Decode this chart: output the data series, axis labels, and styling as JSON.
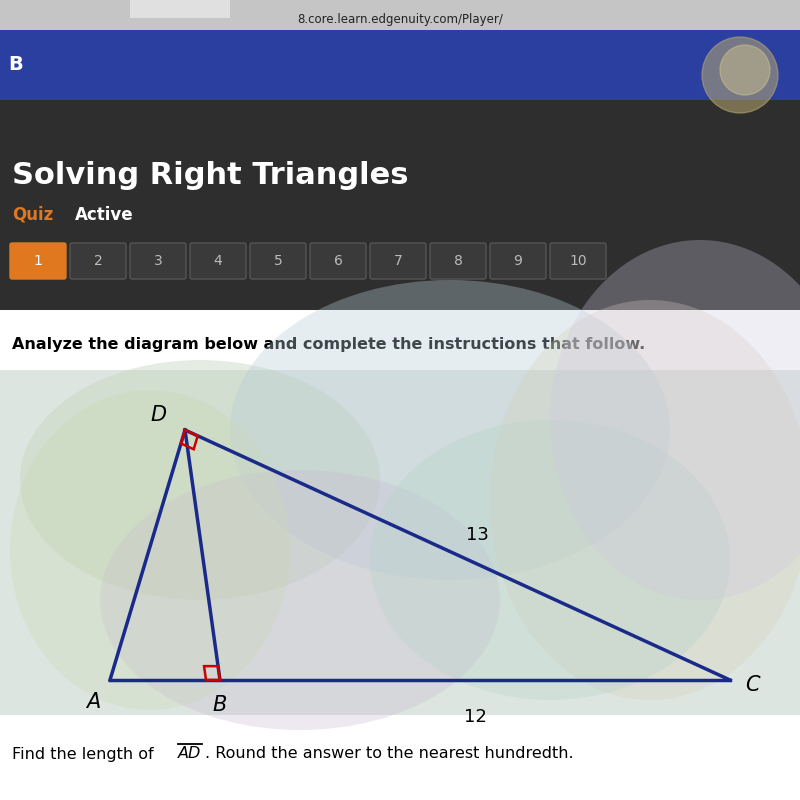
{
  "url_text": "8.core.learn.edgenuity.com/Player/",
  "sidebar_letter": "B",
  "title": "Solving Right Triangles",
  "quiz_label": "Quiz",
  "active_label": "Active",
  "quiz_numbers": [
    1,
    2,
    3,
    4,
    5,
    6,
    7,
    8,
    9,
    10
  ],
  "active_number": 1,
  "active_color": "#e07820",
  "inactive_btn_color": "#3a3a3a",
  "inactive_text_color": "#bbbbbb",
  "inactive_border": "#555555",
  "header_dark_bg": "#2e2e2e",
  "header_blue_bg": "#2a3fa0",
  "url_bar_bg": "#c8c8c8",
  "instruction_text": "Analyze the diagram below and complete the instructions that follow.",
  "triangle_color": "#1a2a8a",
  "right_angle_color": "#cc0000",
  "label_D": "D",
  "label_A": "A",
  "label_B": "B",
  "label_C": "C",
  "label_13": "13",
  "label_12": "12",
  "footer_text_1": "Find the length of ",
  "footer_overline": "AD",
  "footer_text_2": ". Round the answer to the nearest hundredth.",
  "white_bg": "#ffffff",
  "diag_bg": "#e8eae8",
  "A": [
    0.13,
    0.3
  ],
  "B": [
    0.27,
    0.3
  ],
  "C": [
    0.88,
    0.3
  ],
  "D": [
    0.22,
    0.74
  ]
}
